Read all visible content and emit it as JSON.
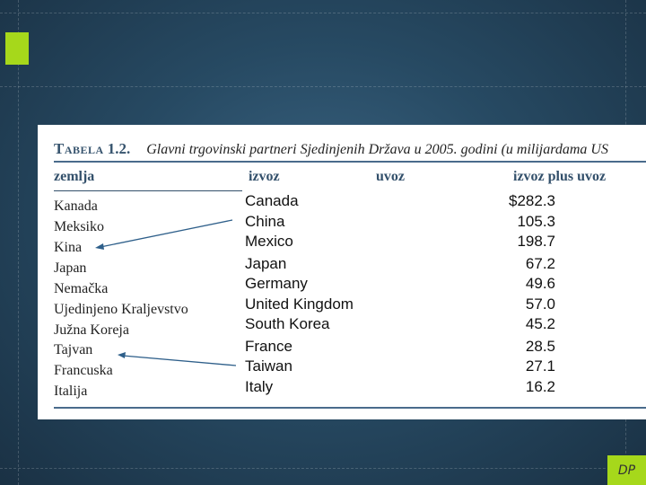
{
  "table": {
    "label": "Tabela",
    "number": "1.2.",
    "title": "Glavni trgovinski partneri Sjedinjenih Država u 2005. godini (u milijardama US",
    "headers": {
      "country": "zemlja",
      "exports": "izvoz",
      "imports": "uvoz",
      "total": "izvoz plus uvoz"
    },
    "local_names": [
      "Kanada",
      "Meksiko",
      "Kina",
      "Japan",
      "Nemačka",
      "Ujedinjeno Kraljevstvo",
      "Južna Koreja",
      "Tajvan",
      "Francuska",
      "Italija"
    ],
    "rows": [
      {
        "partner": "Canada",
        "total": "$282.3"
      },
      {
        "partner": "China",
        "total": "105.3"
      },
      {
        "partner": "Mexico",
        "total": "198.7"
      },
      {
        "partner": "Japan",
        "total": "67.2"
      },
      {
        "partner": "Germany",
        "total": "49.6"
      },
      {
        "partner": "United Kingdom",
        "total": "57.0"
      },
      {
        "partner": "South Korea",
        "total": "45.2"
      },
      {
        "partner": "France",
        "total": "28.5"
      },
      {
        "partner": "Taiwan",
        "total": "27.1"
      },
      {
        "partner": "Italy",
        "total": "16.2"
      }
    ]
  },
  "badge": {
    "text": "DP"
  },
  "colors": {
    "accent": "#a6d81b",
    "header": "#33506b",
    "arrow": "#2e5f8a"
  }
}
